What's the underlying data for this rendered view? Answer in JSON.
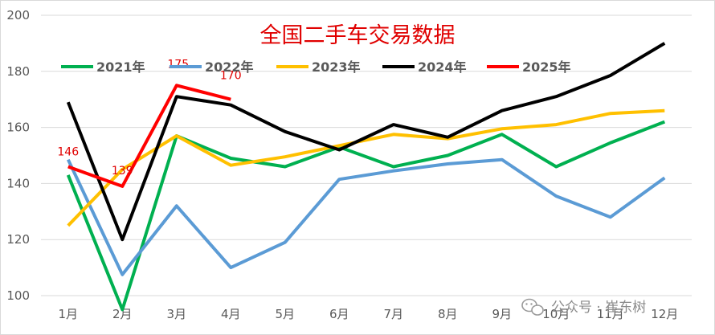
{
  "chart_data": {
    "type": "line",
    "title": "全国二手车交易数据",
    "xlabel": "",
    "ylabel": "",
    "categories": [
      "1月",
      "2月",
      "3月",
      "4月",
      "5月",
      "6月",
      "7月",
      "8月",
      "9月",
      "10月",
      "11月",
      "12月"
    ],
    "ylim": [
      100,
      200
    ],
    "yticks": [
      "100",
      "120",
      "140",
      "160",
      "180",
      "200"
    ],
    "grid": true,
    "legend_position": "top",
    "series": [
      {
        "name": "2021年",
        "color": "#00b050",
        "values": [
          143,
          95,
          157,
          149,
          146,
          153,
          146,
          150,
          157.5,
          146,
          154.5,
          162
        ]
      },
      {
        "name": "2022年",
        "color": "#5b9bd5",
        "values": [
          148.5,
          107.5,
          132,
          110,
          119,
          141.5,
          144.5,
          147,
          148.5,
          135.5,
          128,
          142
        ]
      },
      {
        "name": "2023年",
        "color": "#ffc000",
        "values": [
          125,
          145,
          157,
          146.5,
          149.5,
          153.5,
          157.5,
          156,
          159.5,
          161,
          165,
          166
        ]
      },
      {
        "name": "2024年",
        "color": "#000000",
        "values": [
          169,
          120,
          171,
          168,
          158.5,
          152,
          161,
          156.5,
          166,
          171,
          178.5,
          190
        ]
      },
      {
        "name": "2025年",
        "color": "#ff0000",
        "values": [
          146,
          139,
          175,
          170,
          null,
          null,
          null,
          null,
          null,
          null,
          null,
          null
        ]
      }
    ],
    "data_labels": [
      {
        "series": "2025年",
        "index": 0,
        "text": "146"
      },
      {
        "series": "2025年",
        "index": 1,
        "text": "139"
      },
      {
        "series": "2025年",
        "index": 2,
        "text": "175"
      },
      {
        "series": "2025年",
        "index": 3,
        "text": "170"
      }
    ]
  },
  "watermark": {
    "icon": "wechat-icon",
    "text": "公众号 · 崔东树"
  }
}
